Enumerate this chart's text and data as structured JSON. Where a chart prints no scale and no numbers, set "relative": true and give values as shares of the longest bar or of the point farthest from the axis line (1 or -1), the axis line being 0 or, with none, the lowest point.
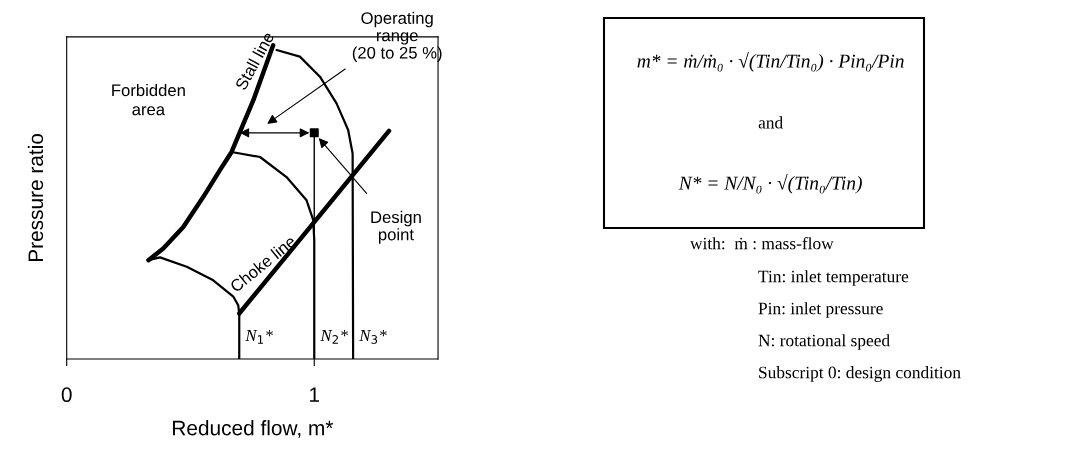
{
  "chart_data": {
    "type": "line",
    "relative": true,
    "xlabel": "Reduced flow, m*",
    "ylabel": "Pressure ratio",
    "xlim": [
      0,
      1.5
    ],
    "xticks": [
      0,
      1
    ],
    "grid": false,
    "legend": false,
    "tick_labels": "x",
    "series": [
      {
        "name": "Stall line",
        "color": "#000000",
        "x": [
          0.33,
          0.39,
          0.471,
          0.552,
          0.619,
          0.666,
          0.7,
          0.754,
          0.834
        ],
        "values": [
          0.315,
          0.352,
          0.421,
          0.517,
          0.602,
          0.66,
          0.724,
          0.825,
          1.0
        ]
      },
      {
        "name": "Choke line",
        "color": "#000000",
        "x": [
          0.697,
          1.302
        ],
        "values": [
          0.145,
          0.727
        ]
      },
      {
        "name": "N$_{1}$*",
        "color": "#000000",
        "x": [
          0.33,
          0.377,
          0.485,
          0.592,
          0.673,
          0.693,
          0.697,
          0.697
        ],
        "values": [
          0.315,
          0.324,
          0.294,
          0.251,
          0.199,
          0.171,
          0.145,
          0.0
        ]
      },
      {
        "name": "N$_{2}$*",
        "color": "#000000",
        "x": [
          0.666,
          0.781,
          0.888,
          0.969,
          0.996,
          1.0,
          1.0
        ],
        "values": [
          0.66,
          0.644,
          0.58,
          0.506,
          0.443,
          0.379,
          0.0
        ]
      },
      {
        "name": "N$_{3}$*",
        "color": "#000000",
        "x": [
          0.848,
          0.942,
          1.023,
          1.09,
          1.137,
          1.155,
          1.157
        ],
        "values": [
          0.985,
          0.964,
          0.9,
          0.815,
          0.73,
          0.655,
          0.0
        ]
      },
      {
        "type": "line",
        "color": "#000000",
        "x": [
          1.0,
          1.0
        ],
        "values": [
          0.721,
          0.379
        ]
      },
      {
        "type": "scatter",
        "marker": "square",
        "color": "#000000",
        "x": [
          1.0
        ],
        "values": [
          0.721
        ]
      }
    ],
    "annotations": [
      "Forbidden\narea",
      "Operating\nrange\n(20 to 25 %)",
      {
        "text": "Design\npoint",
        "x": 1.0,
        "y": 0.721
      },
      "m* = ṁ/ṁ₀ · √(Tin/Tin₀) · Pin₀/Pin",
      "and",
      "N* = N/N₀ · √(Tin₀/Tin)",
      "with:  ṁ : mass-flow",
      "Tin: inlet temperature",
      "Pin: inlet pressure",
      "N: rotational speed",
      "Subscript 0: design condition"
    ]
  }
}
